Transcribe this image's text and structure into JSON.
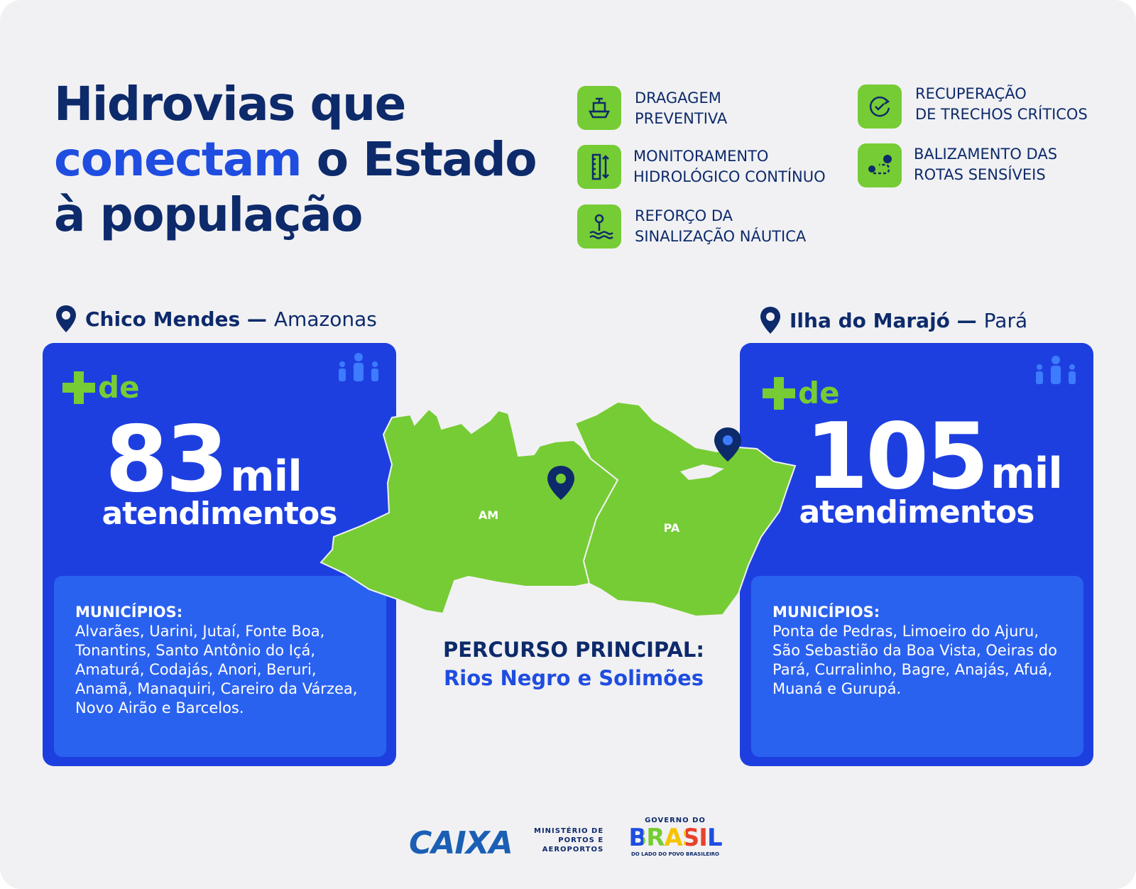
{
  "header": {
    "title_line1": "Hidrovias que",
    "title_highlight": "conectam",
    "title_line2_rest": "o Estado",
    "title_line3": "à população"
  },
  "actions": [
    {
      "lines": [
        "DRAGAGEM",
        "PREVENTIVA"
      ]
    },
    {
      "lines": [
        "MONITORAMENTO",
        "HIDROLÓGICO CONTÍNUO"
      ]
    },
    {
      "lines": [
        "REFORÇO DA",
        "SINALIZAÇÃO NÁUTICA"
      ]
    },
    {
      "lines": [
        "RECUPERAÇÃO",
        "DE TRECHOS CRÍTICOS"
      ]
    },
    {
      "lines": [
        "BALIZAMENTO DAS",
        "ROTAS SENSÍVEIS"
      ]
    }
  ],
  "regions": [
    {
      "place": "Chico Mendes —",
      "state": "Amazonas",
      "prefix": "de",
      "number": "83",
      "unit": "mil",
      "label": "atendimentos",
      "municipalities_heading": "MUNICÍPIOS:",
      "municipalities": "Alvarães, Uarini, Jutaí, Fonte Boa, Tonantins, Santo Antônio do Içá, Amaturá, Codajás, Anori, Beruri, Anamã, Manaquiri, Careiro da Várzea, Novo Airão e Barcelos."
    },
    {
      "place": "Ilha do Marajó —",
      "state": "Pará",
      "prefix": "de",
      "number": "105",
      "unit": "mil",
      "label": "atendimentos",
      "municipalities_heading": "MUNICÍPIOS:",
      "municipalities": "Ponta de Pedras, Limoeiro do Ajuru, São Sebastião da Boa Vista, Oeiras do Pará, Curralinho, Bagre, Anajás, Afuá, Muaná e Gurupá."
    }
  ],
  "map": {
    "labels": [
      "AM",
      "PA"
    ]
  },
  "route": {
    "heading": "PERCURSO PRINCIPAL:",
    "rivers": "Rios Negro e Solimões"
  },
  "footer": {
    "caixa": "CAIXA",
    "ministry": [
      "MINISTÉRIO DE",
      "PORTOS E",
      "AEROPORTOS"
    ],
    "gov_top": "GOVERNO DO",
    "gov_name": "BRASIL",
    "gov_tagline": "DO LADO DO POVO BRASILEIRO"
  }
}
